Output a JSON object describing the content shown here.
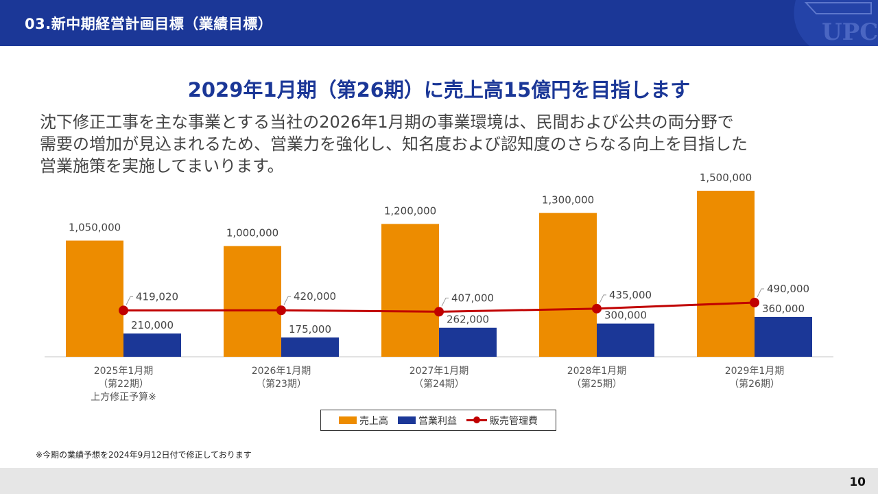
{
  "header": {
    "title": "03.新中期経営計画目標（業績目標）",
    "logo_text": "UPC"
  },
  "headline": "2029年1月期（第26期）に売上高15億円を目指します",
  "body_lines": [
    "沈下修正工事を主な事業とする当社の2026年1月期の事業環境は、民間および公共の両分野で",
    "需要の増加が見込まれるため、営業力を強化し、知名度および認知度のさらなる向上を目指した",
    "営業施策を実施してまいります。"
  ],
  "chart_data": {
    "type": "bar",
    "categories": [
      [
        "2025年1月期",
        "（第22期）",
        "上方修正予算※"
      ],
      [
        "2026年1月期",
        "（第23期）"
      ],
      [
        "2027年1月期",
        "（第24期）"
      ],
      [
        "2028年1月期",
        "（第25期）"
      ],
      [
        "2029年1月期",
        "（第26期）"
      ]
    ],
    "series": [
      {
        "name": "売上高",
        "type": "bar",
        "color": "#ed8c00",
        "values": [
          1050000,
          1000000,
          1200000,
          1300000,
          1500000
        ],
        "labels": [
          "1,050,000",
          "1,000,000",
          "1,200,000",
          "1,300,000",
          "1,500,000"
        ]
      },
      {
        "name": "営業利益",
        "type": "bar",
        "color": "#1b3797",
        "values": [
          210000,
          175000,
          262000,
          300000,
          360000
        ],
        "labels": [
          "210,000",
          "175,000",
          "262,000",
          "300,000",
          "360,000"
        ]
      },
      {
        "name": "販売管理費",
        "type": "line",
        "color": "#c00000",
        "values": [
          419020,
          420000,
          407000,
          435000,
          490000
        ],
        "labels": [
          "419,020",
          "420,000",
          "407,000",
          "435,000",
          "490,000"
        ]
      }
    ],
    "ylim": [
      0,
      1500000
    ],
    "grid": false,
    "legend": "bottom"
  },
  "footnote": "※今期の業績予想を2024年9月12日付で修正しております",
  "page_number": "10"
}
